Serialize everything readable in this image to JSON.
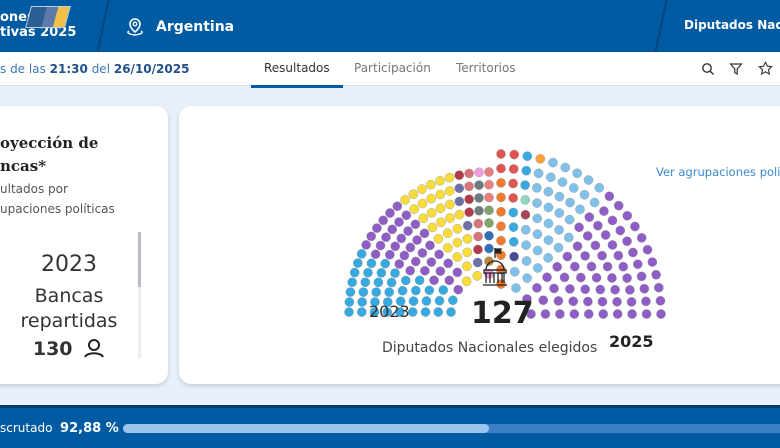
{
  "header": {
    "brand_line1": "ones",
    "brand_line2": "tivas 2025",
    "location": "Argentina",
    "category": "Diputados Nacio"
  },
  "updatebar": {
    "prefix": "s de las",
    "time": "21:30",
    "mid": "del",
    "date": "26/10/2025"
  },
  "tabs": [
    {
      "label": "Resultados",
      "active": true
    },
    {
      "label": "Participación"
    },
    {
      "label": "Territorios"
    }
  ],
  "icons": [
    "search-icon",
    "filter-icon",
    "star-icon"
  ],
  "panel": {
    "title_line1": "oyección de",
    "title_line2": "ncas*",
    "subtitle_line1": "ultados por",
    "subtitle_line2": "upaciones políticas",
    "year": "2023",
    "label_line1": "Bancas",
    "label_line2": "repartidas",
    "count": "130"
  },
  "chart_data": {
    "type": "parliament",
    "link": "Ver agrupaciones poli",
    "left_label": "2023",
    "right_label": "2025",
    "total": "127",
    "caption": "Diputados Nacionales elegidos",
    "left_seats": [
      {
        "color": "#36a9e1",
        "count": 40
      },
      {
        "color": "#8e5ec6",
        "count": 35
      },
      {
        "color": "#f7dc3a",
        "count": 30
      },
      {
        "color": "#6b6fa8",
        "count": 4
      },
      {
        "color": "#b03a48",
        "count": 4
      },
      {
        "color": "#d8737a",
        "count": 4
      },
      {
        "color": "#6e7a80",
        "count": 3
      },
      {
        "color": "#f39bdc",
        "count": 2
      },
      {
        "color": "#b8883f",
        "count": 1
      },
      {
        "color": "#2f6fb8",
        "count": 2
      },
      {
        "color": "#7fa36a",
        "count": 2
      },
      {
        "color": "#e87e7e",
        "count": 3
      }
    ],
    "right_seats": [
      {
        "color": "#f07b2f",
        "count": 8
      },
      {
        "color": "#e05454",
        "count": 6
      },
      {
        "color": "#36a9e1",
        "count": 6
      },
      {
        "color": "#8dd9c0",
        "count": 1
      },
      {
        "color": "#4a4a98",
        "count": 1
      },
      {
        "color": "#a8445a",
        "count": 1
      },
      {
        "color": "#f7a23a",
        "count": 1
      },
      {
        "color": "#7fc1e8",
        "count": 36
      },
      {
        "color": "#8e5ec6",
        "count": 67
      }
    ]
  },
  "footer": {
    "label": "scrutado",
    "percent": "92,88 %",
    "progress": 92.88
  }
}
